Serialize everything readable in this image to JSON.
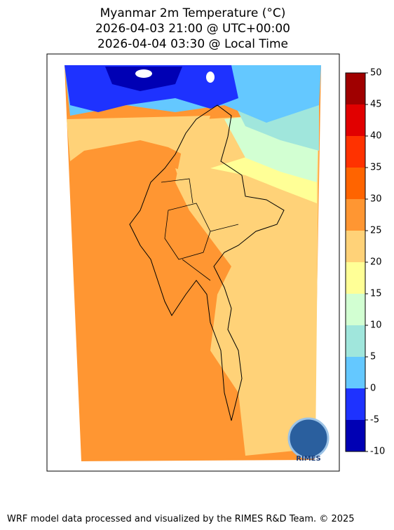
{
  "title": [
    "Myanmar 2m Temperature (°C)",
    "2026-04-03 21:00 @ UTC+00:00",
    "2026-04-04 03:30 @ Local Time"
  ],
  "colorbar": {
    "lim": [
      -10,
      50
    ],
    "ticks": [
      -10,
      -5,
      0,
      5,
      10,
      15,
      20,
      25,
      30,
      35,
      40,
      45,
      50
    ],
    "colors": [
      "#0000b4",
      "#1e32ff",
      "#64c8ff",
      "#a0e6dc",
      "#d2ffd2",
      "#ffff96",
      "#ffd278",
      "#ff9632",
      "#ff6400",
      "#ff3200",
      "#e10000",
      "#a00000"
    ]
  },
  "logo": "RIMES",
  "footer": "WRF model data processed and visualized by the RIMES R&D Team. © 2025"
}
